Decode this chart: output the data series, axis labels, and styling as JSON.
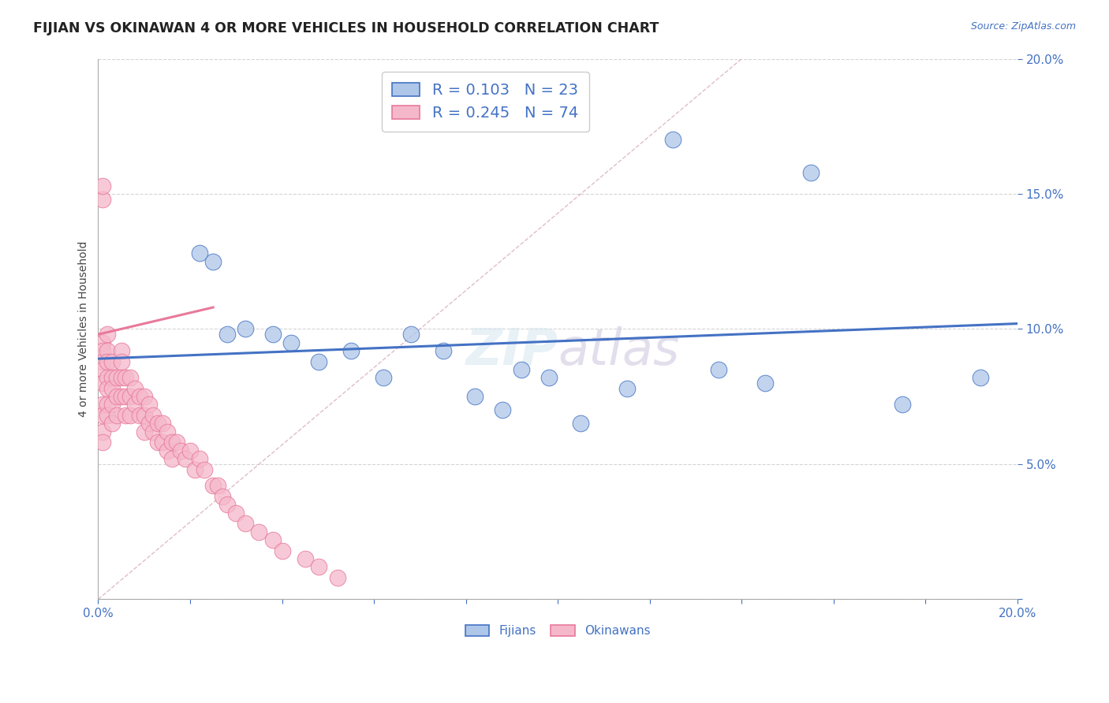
{
  "title": "FIJIAN VS OKINAWAN 4 OR MORE VEHICLES IN HOUSEHOLD CORRELATION CHART",
  "source": "Source: ZipAtlas.com",
  "ylabel": "4 or more Vehicles in Household",
  "xlim": [
    0.0,
    0.2
  ],
  "ylim": [
    0.0,
    0.2
  ],
  "fijians_R": 0.103,
  "fijians_N": 23,
  "okinawans_R": 0.245,
  "okinawans_N": 74,
  "fijians_color": "#aec6e8",
  "okinawans_color": "#f5b8cb",
  "fijians_line_color": "#4472c4",
  "okinawans_line_color": "#e8799a",
  "diagonal_color": "#d8a0b0",
  "grid_color": "#d0d0d0",
  "watermark_zip": "ZIP",
  "watermark_atlas": "atlas",
  "fijians_x": [
    0.022,
    0.025,
    0.028,
    0.032,
    0.038,
    0.042,
    0.048,
    0.055,
    0.062,
    0.068,
    0.075,
    0.082,
    0.088,
    0.092,
    0.098,
    0.105,
    0.115,
    0.125,
    0.135,
    0.145,
    0.155,
    0.175,
    0.192
  ],
  "fijians_y": [
    0.128,
    0.125,
    0.098,
    0.1,
    0.098,
    0.095,
    0.088,
    0.092,
    0.082,
    0.098,
    0.092,
    0.075,
    0.07,
    0.085,
    0.082,
    0.065,
    0.078,
    0.17,
    0.085,
    0.08,
    0.158,
    0.072,
    0.082
  ],
  "okinawans_x": [
    0.001,
    0.001,
    0.001,
    0.001,
    0.001,
    0.001,
    0.001,
    0.001,
    0.001,
    0.001,
    0.001,
    0.002,
    0.002,
    0.002,
    0.002,
    0.002,
    0.002,
    0.002,
    0.003,
    0.003,
    0.003,
    0.003,
    0.003,
    0.004,
    0.004,
    0.004,
    0.005,
    0.005,
    0.005,
    0.005,
    0.006,
    0.006,
    0.006,
    0.007,
    0.007,
    0.007,
    0.008,
    0.008,
    0.009,
    0.009,
    0.01,
    0.01,
    0.01,
    0.011,
    0.011,
    0.012,
    0.012,
    0.013,
    0.013,
    0.014,
    0.014,
    0.015,
    0.015,
    0.016,
    0.016,
    0.017,
    0.018,
    0.019,
    0.02,
    0.021,
    0.022,
    0.023,
    0.025,
    0.026,
    0.027,
    0.028,
    0.03,
    0.032,
    0.035,
    0.038,
    0.04,
    0.045,
    0.048,
    0.052
  ],
  "okinawans_y": [
    0.148,
    0.153,
    0.095,
    0.092,
    0.088,
    0.085,
    0.08,
    0.072,
    0.068,
    0.062,
    0.058,
    0.098,
    0.092,
    0.088,
    0.082,
    0.078,
    0.072,
    0.068,
    0.088,
    0.082,
    0.078,
    0.072,
    0.065,
    0.082,
    0.075,
    0.068,
    0.092,
    0.088,
    0.082,
    0.075,
    0.082,
    0.075,
    0.068,
    0.082,
    0.075,
    0.068,
    0.078,
    0.072,
    0.075,
    0.068,
    0.075,
    0.068,
    0.062,
    0.072,
    0.065,
    0.068,
    0.062,
    0.065,
    0.058,
    0.065,
    0.058,
    0.062,
    0.055,
    0.058,
    0.052,
    0.058,
    0.055,
    0.052,
    0.055,
    0.048,
    0.052,
    0.048,
    0.042,
    0.042,
    0.038,
    0.035,
    0.032,
    0.028,
    0.025,
    0.022,
    0.018,
    0.015,
    0.012,
    0.008
  ],
  "fij_trend_x": [
    0.0,
    0.2
  ],
  "fij_trend_y": [
    0.089,
    0.102
  ],
  "oki_trend_x": [
    0.0,
    0.025
  ],
  "oki_trend_y": [
    0.098,
    0.108
  ]
}
